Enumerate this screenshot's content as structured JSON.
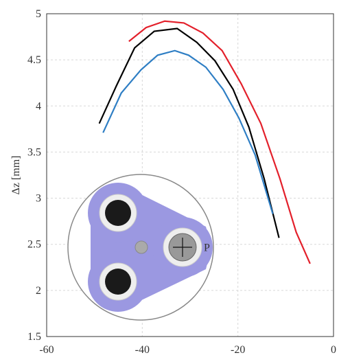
{
  "chart_data": {
    "type": "line",
    "y_label": "Δz [mm]",
    "annotations": [
      "P"
    ],
    "xlim": [
      -60,
      0
    ],
    "xticks": [
      -60,
      -40,
      -20,
      0
    ],
    "ylim": [
      1.5,
      5
    ],
    "yticks": [
      1.5,
      2,
      2.5,
      3,
      3.5,
      4,
      4.5,
      5
    ],
    "grid": true,
    "series": [
      {
        "color": "#e3202b",
        "x": [
          -42.8,
          -39.2,
          -35.3,
          -31.3,
          -27.3,
          -23.3,
          -19.3,
          -15.2,
          -11.2,
          -7.8,
          -4.9
        ],
        "values": [
          4.7,
          4.85,
          4.92,
          4.9,
          4.79,
          4.6,
          4.24,
          3.81,
          3.21,
          2.63,
          2.29
        ]
      },
      {
        "color": "#000000",
        "x": [
          -49.0,
          -45.4,
          -41.6,
          -37.5,
          -32.7,
          -28.6,
          -24.8,
          -21.0,
          -17.7,
          -14.5,
          -11.4
        ],
        "values": [
          3.81,
          4.22,
          4.63,
          4.81,
          4.84,
          4.69,
          4.49,
          4.18,
          3.77,
          3.21,
          2.57
        ]
      },
      {
        "color": "#2e7ec4",
        "x": [
          -48.2,
          -44.4,
          -40.3,
          -36.8,
          -33.2,
          -30.3,
          -26.7,
          -23.1,
          -19.8,
          -16.4,
          -12.7
        ],
        "values": [
          3.71,
          4.14,
          4.39,
          4.55,
          4.6,
          4.55,
          4.42,
          4.18,
          3.87,
          3.47,
          2.83
        ]
      }
    ]
  }
}
